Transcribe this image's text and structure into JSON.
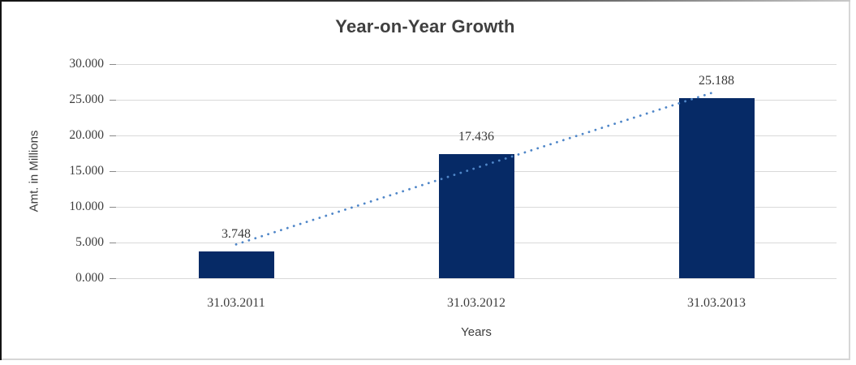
{
  "chart": {
    "title": "Year-on-Year Growth",
    "y_axis_title": "Amt. in Millions",
    "x_axis_title": "Years"
  },
  "chart_data": {
    "type": "bar",
    "title": "Year-on-Year Growth",
    "xlabel": "Years",
    "ylabel": "Amt. in Millions",
    "categories": [
      "31.03.2011",
      "31.03.2012",
      "31.03.2013"
    ],
    "values": [
      3.748,
      17.436,
      25.188
    ],
    "data_labels": [
      "3.748",
      "17.436",
      "25.188"
    ],
    "y_ticks": [
      "30.000",
      "25.000",
      "20.000",
      "15.000",
      "10.000",
      "5.000",
      "0.000"
    ],
    "y_tick_values": [
      30,
      25,
      20,
      15,
      10,
      5,
      0
    ],
    "ylim": [
      0,
      30
    ],
    "grid": "horizontal",
    "legend": "none",
    "bar_color": "#062a66",
    "gridline_color": "#d9d9d9",
    "label_color": "#3d3d3d",
    "title_color": "#3f3f3f",
    "trendline": {
      "type": "linear",
      "style": "dotted",
      "color": "#4f86c8",
      "fitted_values": [
        4.737,
        15.457,
        26.177
      ]
    }
  }
}
